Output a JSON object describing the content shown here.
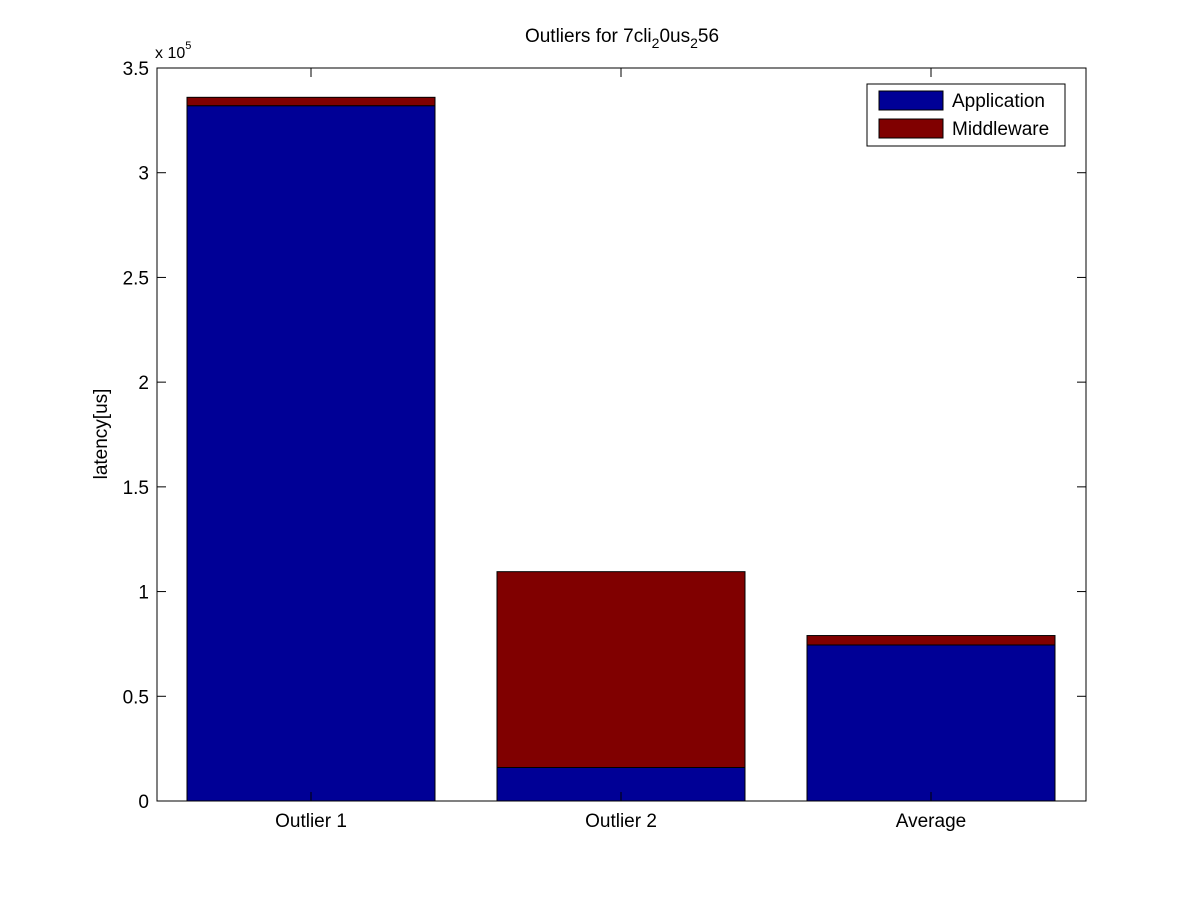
{
  "chart_data": {
    "type": "bar",
    "stacked": true,
    "title": "Outliers for 7cli_20us_256",
    "title_parts": [
      {
        "text": "Outliers for 7cli",
        "sub": false
      },
      {
        "text": "2",
        "sub": true
      },
      {
        "text": "0us",
        "sub": false
      },
      {
        "text": "2",
        "sub": true
      },
      {
        "text": "56",
        "sub": false
      }
    ],
    "xlabel": "",
    "ylabel": "latency[us]",
    "y_multiplier": {
      "base": "x 10",
      "exponent": "5"
    },
    "categories": [
      "Outlier 1",
      "Outlier 2",
      "Average"
    ],
    "series": [
      {
        "name": "Application",
        "color": "#000096",
        "values": [
          332000,
          16000,
          74500
        ]
      },
      {
        "name": "Middleware",
        "color": "#800000",
        "values": [
          4000,
          93500,
          4500
        ]
      }
    ],
    "ylim": [
      0,
      350000
    ],
    "yticks": [
      0,
      50000,
      100000,
      150000,
      200000,
      250000,
      300000,
      350000
    ],
    "ytick_labels": [
      "0",
      "0.5",
      "1",
      "1.5",
      "2",
      "2.5",
      "3",
      "3.5"
    ],
    "grid": false,
    "legend_position": "top-right"
  }
}
